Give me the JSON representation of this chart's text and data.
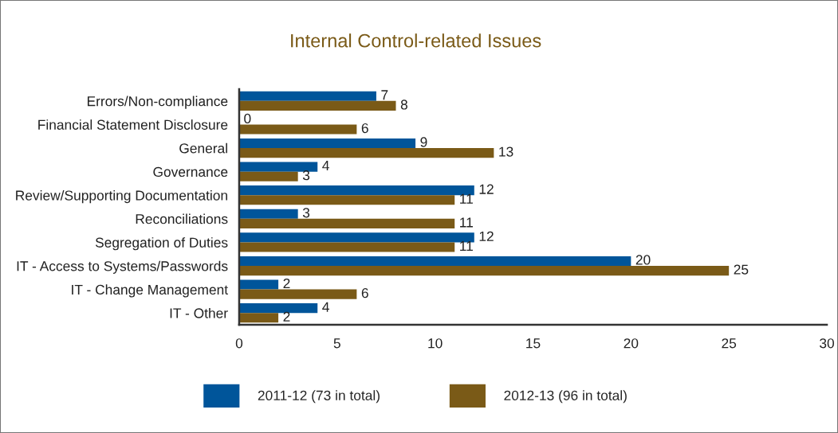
{
  "chart_data": {
    "type": "bar",
    "orientation": "horizontal",
    "title": "Internal Control-related Issues",
    "categories": [
      "Errors/Non-compliance",
      "Financial Statement Disclosure",
      "General",
      "Governance",
      "Review/Supporting Documentation",
      "Reconciliations",
      "Segregation of Duties",
      "IT - Access to Systems/Passwords",
      "IT - Change Management",
      "IT - Other"
    ],
    "series": [
      {
        "name": "2011-12 (73 in total)",
        "color": "#00559a",
        "values": [
          7,
          0,
          9,
          4,
          12,
          3,
          12,
          20,
          2,
          4
        ]
      },
      {
        "name": "2012-13 (96 in total)",
        "color": "#7a5a17",
        "values": [
          8,
          6,
          13,
          3,
          11,
          11,
          11,
          25,
          6,
          2
        ]
      }
    ],
    "xlim": [
      0,
      30
    ],
    "xticks": [
      0,
      5,
      10,
      15,
      20,
      25,
      30
    ],
    "data_labels": true,
    "grid": false,
    "legend": "bottom"
  }
}
